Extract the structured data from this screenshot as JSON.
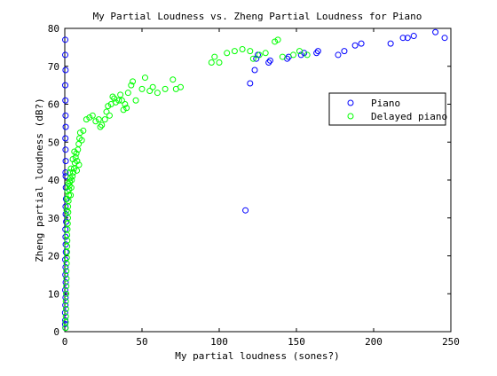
{
  "chart_data": {
    "type": "scatter",
    "title": "My Partial Loudness vs. Zheng Partial Loudness for Piano",
    "xlabel": "My partial loudness (sones?)",
    "ylabel": "Zheng partial loudness (dB?)",
    "xlim": [
      0,
      250
    ],
    "ylim": [
      0,
      80
    ],
    "xticks": [
      0,
      50,
      100,
      150,
      200,
      250
    ],
    "yticks": [
      0,
      10,
      20,
      30,
      40,
      50,
      60,
      70,
      80
    ],
    "xtick_labels": [
      "0",
      "50",
      "100",
      "150",
      "200",
      "250"
    ],
    "ytick_labels": [
      "0",
      "10",
      "20",
      "30",
      "40",
      "50",
      "60",
      "70",
      "80"
    ],
    "grid": false,
    "legend": {
      "placement": "upper-right",
      "entries": [
        "Piano",
        "Delayed piano"
      ]
    },
    "marker": "circle-open",
    "series": [
      {
        "name": "Piano",
        "color": "#0000ff",
        "points": [
          [
            0.3,
            77
          ],
          [
            0.3,
            73
          ],
          [
            0.5,
            69
          ],
          [
            0.3,
            65
          ],
          [
            0.4,
            61
          ],
          [
            0.5,
            57
          ],
          [
            0.6,
            54
          ],
          [
            0.4,
            51
          ],
          [
            0.5,
            48
          ],
          [
            0.6,
            45
          ],
          [
            0.5,
            42
          ],
          [
            0.6,
            41
          ],
          [
            0.7,
            38
          ],
          [
            0.8,
            35
          ],
          [
            0.5,
            33
          ],
          [
            0.6,
            31
          ],
          [
            0.9,
            29
          ],
          [
            0.4,
            27
          ],
          [
            0.5,
            25
          ],
          [
            0.6,
            23
          ],
          [
            0.7,
            21
          ],
          [
            0.3,
            19
          ],
          [
            0.5,
            17
          ],
          [
            0.4,
            15
          ],
          [
            0.6,
            13
          ],
          [
            0.3,
            11
          ],
          [
            0.5,
            9
          ],
          [
            0.4,
            7
          ],
          [
            0.2,
            5
          ],
          [
            0.3,
            3
          ],
          [
            0.2,
            2
          ],
          [
            0.4,
            1
          ],
          [
            117,
            32
          ],
          [
            120,
            65.5
          ],
          [
            123,
            69
          ],
          [
            124,
            72
          ],
          [
            125,
            73
          ],
          [
            132,
            71
          ],
          [
            133,
            71.5
          ],
          [
            144,
            72
          ],
          [
            145,
            72.5
          ],
          [
            153,
            73
          ],
          [
            155,
            73.5
          ],
          [
            163,
            73.5
          ],
          [
            164,
            74
          ],
          [
            177,
            73
          ],
          [
            181,
            74
          ],
          [
            188,
            75.5
          ],
          [
            192,
            76
          ],
          [
            211,
            76
          ],
          [
            219,
            77.5
          ],
          [
            222,
            77.5
          ],
          [
            226,
            78
          ],
          [
            240,
            79
          ],
          [
            246,
            77.5
          ]
        ]
      },
      {
        "name": "Delayed piano",
        "color": "#00ff00",
        "points": [
          [
            0.5,
            1
          ],
          [
            0.6,
            2.5
          ],
          [
            0.7,
            4
          ],
          [
            0.8,
            6
          ],
          [
            0.7,
            8
          ],
          [
            0.9,
            10
          ],
          [
            1.0,
            12
          ],
          [
            1.1,
            14
          ],
          [
            1.0,
            16
          ],
          [
            1.2,
            18
          ],
          [
            1.3,
            19.5
          ],
          [
            1.4,
            21
          ],
          [
            1.5,
            22.5
          ],
          [
            1.6,
            24
          ],
          [
            1.5,
            25.5
          ],
          [
            1.7,
            27
          ],
          [
            1.9,
            28.5
          ],
          [
            2.0,
            30
          ],
          [
            2.2,
            31.5
          ],
          [
            2.1,
            33
          ],
          [
            2.4,
            34.5
          ],
          [
            2.6,
            36
          ],
          [
            2.8,
            37.5
          ],
          [
            3.0,
            38.5
          ],
          [
            3.3,
            39.5
          ],
          [
            3.6,
            40.5
          ],
          [
            1.2,
            32
          ],
          [
            1.4,
            35
          ],
          [
            1.8,
            37
          ],
          [
            2.3,
            39
          ],
          [
            3.8,
            36
          ],
          [
            4.2,
            38
          ],
          [
            4.5,
            40
          ],
          [
            5.0,
            41
          ],
          [
            5.5,
            42
          ],
          [
            6.0,
            43
          ],
          [
            6.5,
            44.5
          ],
          [
            7.0,
            46
          ],
          [
            7.5,
            47
          ],
          [
            8.0,
            45
          ],
          [
            8.5,
            48
          ],
          [
            9.0,
            49.5
          ],
          [
            9.5,
            51
          ],
          [
            10.0,
            52.5
          ],
          [
            11.0,
            50.5
          ],
          [
            12.0,
            53
          ],
          [
            5.2,
            45.5
          ],
          [
            6.2,
            47.5
          ],
          [
            7.8,
            42.5
          ],
          [
            9.2,
            44
          ],
          [
            3.2,
            42
          ],
          [
            4.0,
            43
          ],
          [
            14,
            56
          ],
          [
            16,
            56.5
          ],
          [
            18,
            57
          ],
          [
            20,
            55.5
          ],
          [
            22,
            56
          ],
          [
            23,
            54
          ],
          [
            24,
            54.5
          ],
          [
            26,
            56
          ],
          [
            27,
            58
          ],
          [
            28,
            59.5
          ],
          [
            29,
            57
          ],
          [
            30,
            60
          ],
          [
            31,
            62
          ],
          [
            32,
            61.5
          ],
          [
            33,
            60.5
          ],
          [
            35,
            61
          ],
          [
            36,
            62.5
          ],
          [
            37,
            61
          ],
          [
            38,
            58.5
          ],
          [
            39,
            60
          ],
          [
            40,
            59
          ],
          [
            41,
            63
          ],
          [
            43,
            65
          ],
          [
            44,
            66
          ],
          [
            46,
            61
          ],
          [
            50,
            64
          ],
          [
            52,
            67
          ],
          [
            55,
            63.5
          ],
          [
            57,
            64.5
          ],
          [
            60,
            63
          ],
          [
            65,
            64
          ],
          [
            70,
            66.5
          ],
          [
            72,
            64
          ],
          [
            75,
            64.5
          ],
          [
            95,
            71
          ],
          [
            97,
            72.5
          ],
          [
            100,
            71
          ],
          [
            105,
            73.5
          ],
          [
            110,
            74
          ],
          [
            115,
            74.5
          ],
          [
            120,
            74
          ],
          [
            122,
            72
          ],
          [
            126,
            73
          ],
          [
            130,
            73.5
          ],
          [
            136,
            76.5
          ],
          [
            138,
            77
          ],
          [
            141,
            72.5
          ],
          [
            148,
            73
          ],
          [
            152,
            74
          ],
          [
            157,
            73
          ]
        ]
      }
    ]
  }
}
